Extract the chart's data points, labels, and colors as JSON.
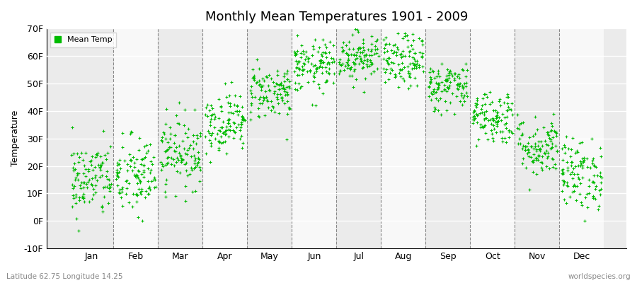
{
  "title": "Monthly Mean Temperatures 1901 - 2009",
  "ylabel": "Temperature",
  "bottom_left_label": "Latitude 62.75 Longitude 14.25",
  "bottom_right_label": "worldspecies.org",
  "legend_label": "Mean Temp",
  "dot_color": "#00bb00",
  "dot_size": 6,
  "background_color": "#ffffff",
  "plot_bg_even": "#ebebeb",
  "plot_bg_odd": "#f8f8f8",
  "ylim": [
    -10,
    70
  ],
  "yticks": [
    -10,
    0,
    10,
    20,
    30,
    40,
    50,
    60,
    70
  ],
  "ytick_labels": [
    "-10F",
    "0F",
    "10F",
    "20F",
    "30F",
    "40F",
    "50F",
    "60F",
    "70F"
  ],
  "months": [
    "Jan",
    "Feb",
    "Mar",
    "Apr",
    "May",
    "Jun",
    "Jul",
    "Aug",
    "Sep",
    "Oct",
    "Nov",
    "Dec"
  ],
  "month_mean_temps_F": [
    15.0,
    16.0,
    25.0,
    36.0,
    47.0,
    56.0,
    60.0,
    58.0,
    49.0,
    38.0,
    27.0,
    17.0
  ],
  "month_std_temps_F": [
    7.0,
    7.5,
    6.5,
    5.5,
    5.0,
    4.8,
    4.5,
    5.0,
    4.5,
    5.0,
    5.5,
    6.5
  ],
  "n_years": 109,
  "seed": 42,
  "xlim_left": 0.0,
  "xlim_right": 13.0
}
